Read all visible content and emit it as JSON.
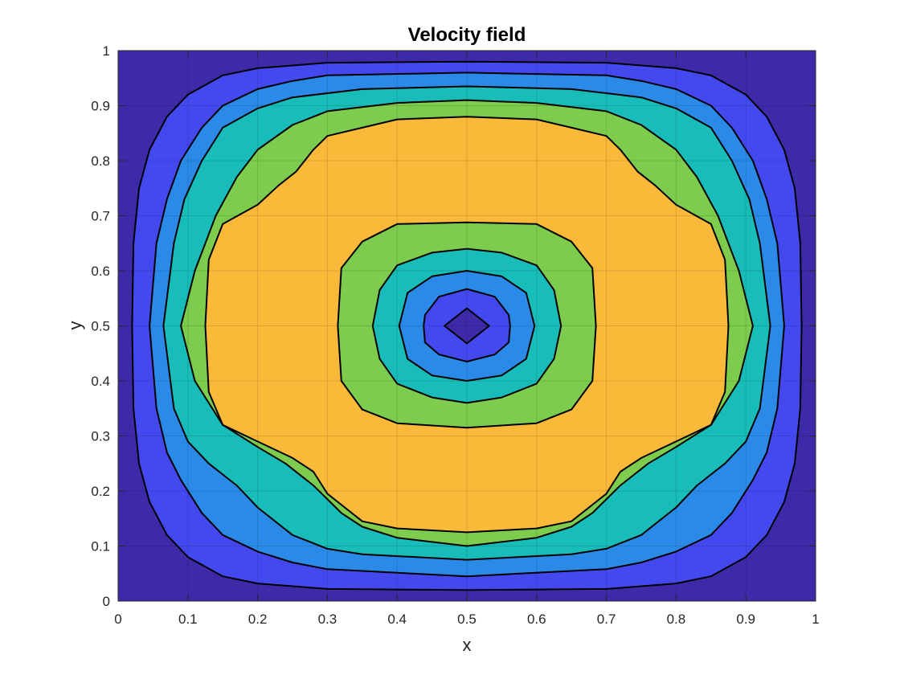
{
  "chart_data": {
    "type": "contour",
    "title": "Velocity field",
    "xlabel": "x",
    "ylabel": "y",
    "xlim": [
      0,
      1
    ],
    "ylim": [
      0,
      1
    ],
    "xticks": [
      0,
      0.1,
      0.2,
      0.3,
      0.4,
      0.5,
      0.6,
      0.7,
      0.8,
      0.9,
      1
    ],
    "yticks": [
      0,
      0.1,
      0.2,
      0.3,
      0.4,
      0.5,
      0.6,
      0.7,
      0.8,
      0.9,
      1
    ],
    "xtick_labels": [
      "0",
      "0.1",
      "0.2",
      "0.3",
      "0.4",
      "0.5",
      "0.6",
      "0.7",
      "0.8",
      "0.9",
      "1"
    ],
    "ytick_labels": [
      "0",
      "0.1",
      "0.2",
      "0.3",
      "0.4",
      "0.5",
      "0.6",
      "0.7",
      "0.8",
      "0.9",
      "1"
    ],
    "grid": true,
    "background_color": "#3c2aa8",
    "contours": [
      {
        "level": 1,
        "fill": "#4349ef",
        "points": [
          [
            0.5,
            0.98
          ],
          [
            0.7,
            0.978
          ],
          [
            0.8,
            0.968
          ],
          [
            0.85,
            0.955
          ],
          [
            0.9,
            0.92
          ],
          [
            0.93,
            0.88
          ],
          [
            0.955,
            0.82
          ],
          [
            0.97,
            0.75
          ],
          [
            0.978,
            0.65
          ],
          [
            0.98,
            0.5
          ],
          [
            0.978,
            0.35
          ],
          [
            0.97,
            0.25
          ],
          [
            0.955,
            0.18
          ],
          [
            0.93,
            0.12
          ],
          [
            0.9,
            0.08
          ],
          [
            0.85,
            0.045
          ],
          [
            0.8,
            0.032
          ],
          [
            0.7,
            0.022
          ],
          [
            0.5,
            0.02
          ],
          [
            0.3,
            0.022
          ],
          [
            0.2,
            0.032
          ],
          [
            0.15,
            0.045
          ],
          [
            0.1,
            0.08
          ],
          [
            0.07,
            0.12
          ],
          [
            0.045,
            0.18
          ],
          [
            0.03,
            0.25
          ],
          [
            0.022,
            0.35
          ],
          [
            0.02,
            0.5
          ],
          [
            0.022,
            0.65
          ],
          [
            0.03,
            0.75
          ],
          [
            0.045,
            0.82
          ],
          [
            0.07,
            0.88
          ],
          [
            0.1,
            0.92
          ],
          [
            0.15,
            0.955
          ],
          [
            0.2,
            0.968
          ],
          [
            0.3,
            0.978
          ]
        ]
      },
      {
        "level": 2,
        "fill": "#2b8ae8",
        "points": [
          [
            0.5,
            0.96
          ],
          [
            0.7,
            0.955
          ],
          [
            0.75,
            0.945
          ],
          [
            0.8,
            0.93
          ],
          [
            0.85,
            0.9
          ],
          [
            0.88,
            0.86
          ],
          [
            0.91,
            0.8
          ],
          [
            0.93,
            0.73
          ],
          [
            0.945,
            0.65
          ],
          [
            0.955,
            0.5
          ],
          [
            0.945,
            0.35
          ],
          [
            0.93,
            0.27
          ],
          [
            0.91,
            0.22
          ],
          [
            0.88,
            0.16
          ],
          [
            0.85,
            0.12
          ],
          [
            0.8,
            0.09
          ],
          [
            0.75,
            0.07
          ],
          [
            0.7,
            0.058
          ],
          [
            0.5,
            0.045
          ],
          [
            0.3,
            0.058
          ],
          [
            0.25,
            0.07
          ],
          [
            0.2,
            0.09
          ],
          [
            0.15,
            0.12
          ],
          [
            0.12,
            0.16
          ],
          [
            0.09,
            0.22
          ],
          [
            0.07,
            0.27
          ],
          [
            0.055,
            0.35
          ],
          [
            0.045,
            0.5
          ],
          [
            0.055,
            0.65
          ],
          [
            0.07,
            0.73
          ],
          [
            0.09,
            0.8
          ],
          [
            0.12,
            0.86
          ],
          [
            0.15,
            0.9
          ],
          [
            0.2,
            0.93
          ],
          [
            0.25,
            0.945
          ],
          [
            0.3,
            0.955
          ]
        ]
      },
      {
        "level": 3,
        "fill": "#18bcb8",
        "points": [
          [
            0.5,
            0.935
          ],
          [
            0.65,
            0.93
          ],
          [
            0.75,
            0.915
          ],
          [
            0.8,
            0.895
          ],
          [
            0.85,
            0.86
          ],
          [
            0.88,
            0.8
          ],
          [
            0.905,
            0.73
          ],
          [
            0.92,
            0.65
          ],
          [
            0.935,
            0.5
          ],
          [
            0.92,
            0.35
          ],
          [
            0.9,
            0.29
          ],
          [
            0.87,
            0.25
          ],
          [
            0.83,
            0.21
          ],
          [
            0.8,
            0.17
          ],
          [
            0.75,
            0.12
          ],
          [
            0.7,
            0.095
          ],
          [
            0.65,
            0.085
          ],
          [
            0.5,
            0.075
          ],
          [
            0.35,
            0.085
          ],
          [
            0.3,
            0.095
          ],
          [
            0.25,
            0.12
          ],
          [
            0.2,
            0.17
          ],
          [
            0.17,
            0.21
          ],
          [
            0.13,
            0.25
          ],
          [
            0.1,
            0.29
          ],
          [
            0.08,
            0.35
          ],
          [
            0.065,
            0.5
          ],
          [
            0.08,
            0.65
          ],
          [
            0.095,
            0.73
          ],
          [
            0.12,
            0.8
          ],
          [
            0.15,
            0.86
          ],
          [
            0.2,
            0.895
          ],
          [
            0.25,
            0.915
          ],
          [
            0.35,
            0.93
          ]
        ]
      },
      {
        "level": 4,
        "fill": "#7dcc4e",
        "points": [
          [
            0.5,
            0.91
          ],
          [
            0.6,
            0.905
          ],
          [
            0.7,
            0.89
          ],
          [
            0.75,
            0.865
          ],
          [
            0.8,
            0.82
          ],
          [
            0.83,
            0.77
          ],
          [
            0.86,
            0.7
          ],
          [
            0.875,
            0.65
          ],
          [
            0.89,
            0.6
          ],
          [
            0.91,
            0.5
          ],
          [
            0.89,
            0.4
          ],
          [
            0.87,
            0.36
          ],
          [
            0.85,
            0.32
          ],
          [
            0.8,
            0.28
          ],
          [
            0.76,
            0.25
          ],
          [
            0.72,
            0.21
          ],
          [
            0.68,
            0.16
          ],
          [
            0.65,
            0.135
          ],
          [
            0.6,
            0.115
          ],
          [
            0.5,
            0.1
          ],
          [
            0.4,
            0.115
          ],
          [
            0.35,
            0.135
          ],
          [
            0.32,
            0.16
          ],
          [
            0.28,
            0.21
          ],
          [
            0.24,
            0.25
          ],
          [
            0.2,
            0.28
          ],
          [
            0.15,
            0.32
          ],
          [
            0.13,
            0.36
          ],
          [
            0.11,
            0.4
          ],
          [
            0.09,
            0.5
          ],
          [
            0.11,
            0.6
          ],
          [
            0.125,
            0.65
          ],
          [
            0.14,
            0.7
          ],
          [
            0.17,
            0.77
          ],
          [
            0.2,
            0.82
          ],
          [
            0.25,
            0.865
          ],
          [
            0.3,
            0.89
          ],
          [
            0.4,
            0.905
          ]
        ]
      },
      {
        "level": 5,
        "fill": "#fbb93a",
        "points": [
          [
            0.5,
            0.88
          ],
          [
            0.6,
            0.875
          ],
          [
            0.65,
            0.86
          ],
          [
            0.7,
            0.845
          ],
          [
            0.72,
            0.82
          ],
          [
            0.745,
            0.78
          ],
          [
            0.77,
            0.755
          ],
          [
            0.8,
            0.72
          ],
          [
            0.85,
            0.685
          ],
          [
            0.87,
            0.62
          ],
          [
            0.875,
            0.5
          ],
          [
            0.87,
            0.38
          ],
          [
            0.85,
            0.32
          ],
          [
            0.8,
            0.29
          ],
          [
            0.75,
            0.26
          ],
          [
            0.72,
            0.235
          ],
          [
            0.7,
            0.195
          ],
          [
            0.65,
            0.145
          ],
          [
            0.6,
            0.132
          ],
          [
            0.5,
            0.125
          ],
          [
            0.4,
            0.132
          ],
          [
            0.35,
            0.145
          ],
          [
            0.3,
            0.195
          ],
          [
            0.28,
            0.235
          ],
          [
            0.25,
            0.26
          ],
          [
            0.2,
            0.29
          ],
          [
            0.15,
            0.32
          ],
          [
            0.13,
            0.38
          ],
          [
            0.125,
            0.5
          ],
          [
            0.13,
            0.62
          ],
          [
            0.15,
            0.685
          ],
          [
            0.2,
            0.72
          ],
          [
            0.23,
            0.755
          ],
          [
            0.255,
            0.78
          ],
          [
            0.28,
            0.82
          ],
          [
            0.3,
            0.845
          ],
          [
            0.35,
            0.86
          ],
          [
            0.4,
            0.875
          ]
        ]
      },
      {
        "level": 6,
        "fill": "#7dcc4e",
        "points": [
          [
            0.5,
            0.688
          ],
          [
            0.6,
            0.685
          ],
          [
            0.65,
            0.653
          ],
          [
            0.68,
            0.605
          ],
          [
            0.685,
            0.5
          ],
          [
            0.68,
            0.4
          ],
          [
            0.65,
            0.348
          ],
          [
            0.6,
            0.323
          ],
          [
            0.5,
            0.315
          ],
          [
            0.4,
            0.323
          ],
          [
            0.35,
            0.348
          ],
          [
            0.32,
            0.4
          ],
          [
            0.315,
            0.5
          ],
          [
            0.32,
            0.605
          ],
          [
            0.35,
            0.653
          ],
          [
            0.4,
            0.685
          ]
        ]
      },
      {
        "level": 7,
        "fill": "#18bcb8",
        "points": [
          [
            0.5,
            0.64
          ],
          [
            0.55,
            0.633
          ],
          [
            0.6,
            0.61
          ],
          [
            0.625,
            0.565
          ],
          [
            0.635,
            0.5
          ],
          [
            0.625,
            0.44
          ],
          [
            0.6,
            0.395
          ],
          [
            0.55,
            0.37
          ],
          [
            0.5,
            0.36
          ],
          [
            0.45,
            0.37
          ],
          [
            0.4,
            0.395
          ],
          [
            0.375,
            0.44
          ],
          [
            0.365,
            0.5
          ],
          [
            0.375,
            0.565
          ],
          [
            0.4,
            0.61
          ],
          [
            0.45,
            0.633
          ]
        ]
      },
      {
        "level": 8,
        "fill": "#2b8ae8",
        "points": [
          [
            0.5,
            0.6
          ],
          [
            0.55,
            0.59
          ],
          [
            0.585,
            0.56
          ],
          [
            0.597,
            0.5
          ],
          [
            0.585,
            0.44
          ],
          [
            0.55,
            0.41
          ],
          [
            0.5,
            0.4
          ],
          [
            0.45,
            0.41
          ],
          [
            0.415,
            0.44
          ],
          [
            0.403,
            0.5
          ],
          [
            0.415,
            0.56
          ],
          [
            0.45,
            0.59
          ]
        ]
      },
      {
        "level": 9,
        "fill": "#4349ef",
        "points": [
          [
            0.5,
            0.567
          ],
          [
            0.54,
            0.553
          ],
          [
            0.56,
            0.52
          ],
          [
            0.562,
            0.5
          ],
          [
            0.56,
            0.47
          ],
          [
            0.54,
            0.448
          ],
          [
            0.5,
            0.435
          ],
          [
            0.46,
            0.448
          ],
          [
            0.44,
            0.47
          ],
          [
            0.438,
            0.5
          ],
          [
            0.44,
            0.52
          ],
          [
            0.46,
            0.553
          ]
        ]
      },
      {
        "level": 10,
        "fill": "#3c2aa8",
        "points": [
          [
            0.5,
            0.532
          ],
          [
            0.532,
            0.5
          ],
          [
            0.5,
            0.468
          ],
          [
            0.468,
            0.5
          ]
        ]
      }
    ]
  }
}
